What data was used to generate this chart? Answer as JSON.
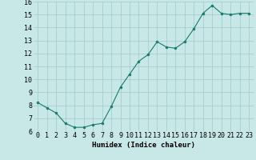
{
  "x": [
    0,
    1,
    2,
    3,
    4,
    5,
    6,
    7,
    8,
    9,
    10,
    11,
    12,
    13,
    14,
    15,
    16,
    17,
    18,
    19,
    20,
    21,
    22,
    23
  ],
  "y": [
    8.2,
    7.8,
    7.4,
    6.6,
    6.3,
    6.3,
    6.5,
    6.6,
    7.9,
    9.4,
    10.4,
    11.4,
    11.9,
    12.9,
    12.5,
    12.4,
    12.9,
    13.9,
    15.1,
    15.7,
    15.1,
    15.0,
    15.1,
    15.1
  ],
  "line_color": "#1a7a6e",
  "marker_color": "#1a7a6e",
  "bg_color": "#c8e8e8",
  "grid_color": "#a0c8c8",
  "xlabel": "Humidex (Indice chaleur)",
  "xlim": [
    -0.5,
    23.5
  ],
  "ylim": [
    6,
    16
  ],
  "xticks": [
    0,
    1,
    2,
    3,
    4,
    5,
    6,
    7,
    8,
    9,
    10,
    11,
    12,
    13,
    14,
    15,
    16,
    17,
    18,
    19,
    20,
    21,
    22,
    23
  ],
  "yticks": [
    6,
    7,
    8,
    9,
    10,
    11,
    12,
    13,
    14,
    15,
    16
  ],
  "xlabel_fontsize": 6.5,
  "tick_fontsize": 6
}
